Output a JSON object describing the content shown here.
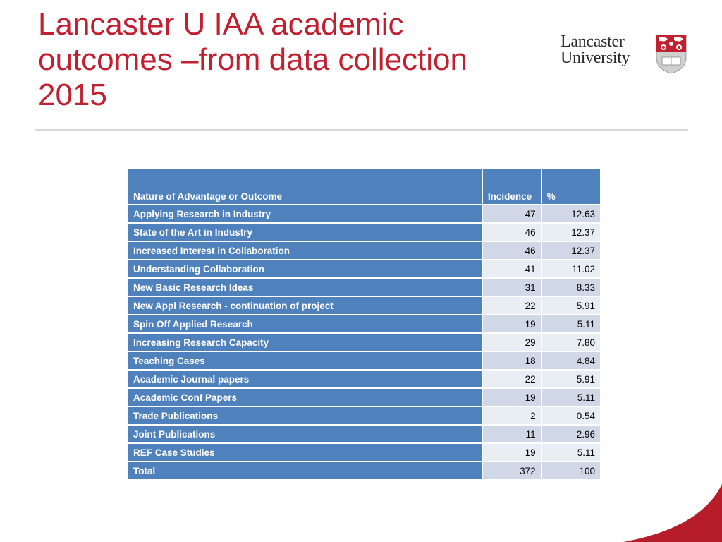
{
  "title": {
    "line1": "Lancaster U IAA academic",
    "line2": "outcomes  –from data collection",
    "line3": "2015"
  },
  "logo": {
    "line1": "Lancaster",
    "line2": "University"
  },
  "colors": {
    "accent_red": "#c0202f",
    "table_header_blue": "#4f81bd",
    "row_light": "#e9edf4",
    "row_mid": "#d0d8e8"
  },
  "table": {
    "headers": {
      "nature": "Nature of Advantage or Outcome",
      "incidence": "Incidence",
      "percent": "%"
    },
    "rows": [
      {
        "label": "Applying Research in Industry",
        "incidence": "47",
        "percent": "12.63"
      },
      {
        "label": "State of the Art in Industry",
        "incidence": "46",
        "percent": "12.37"
      },
      {
        "label": "Increased Interest in Collaboration",
        "incidence": "46",
        "percent": "12.37"
      },
      {
        "label": "Understanding Collaboration",
        "incidence": "41",
        "percent": "11.02"
      },
      {
        "label": "New Basic Research Ideas",
        "incidence": "31",
        "percent": "8.33"
      },
      {
        "label": "New Appl Research - continuation of project",
        "incidence": "22",
        "percent": "5.91"
      },
      {
        "label": "Spin Off Applied Research",
        "incidence": "19",
        "percent": "5.11"
      },
      {
        "label": "Increasing Research Capacity",
        "incidence": "29",
        "percent": "7.80"
      },
      {
        "label": "Teaching Cases",
        "incidence": "18",
        "percent": "4.84"
      },
      {
        "label": "Academic Journal papers",
        "incidence": "22",
        "percent": "5.91"
      },
      {
        "label": "Academic Conf Papers",
        "incidence": "19",
        "percent": "5.11"
      },
      {
        "label": "Trade Publications",
        "incidence": "2",
        "percent": "0.54"
      },
      {
        "label": "Joint Publications",
        "incidence": "11",
        "percent": "2.96"
      },
      {
        "label": "REF Case Studies",
        "incidence": "19",
        "percent": "5.11"
      },
      {
        "label": "Total",
        "incidence": "372",
        "percent": "100"
      }
    ]
  }
}
